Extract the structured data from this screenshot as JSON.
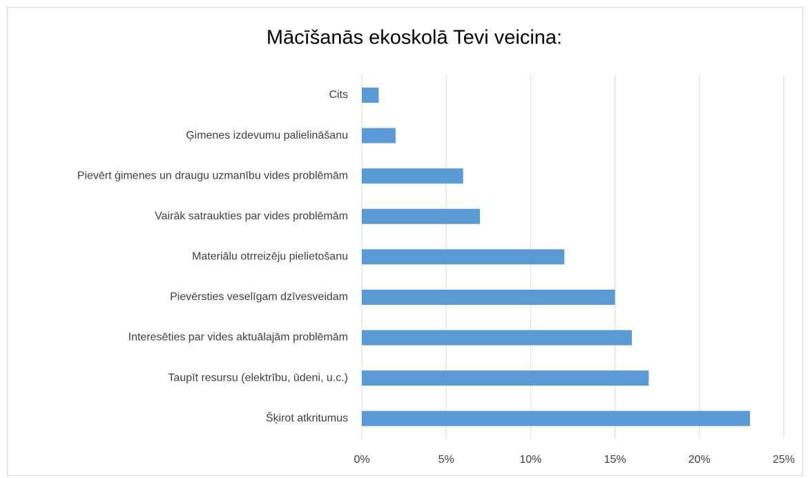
{
  "chart_data": {
    "type": "barh",
    "title": "Mācīšanās ekoskolā Tevi veicina:",
    "categories": [
      "Cits",
      "Ģimenes izdevumu palielināšanu",
      "Pievērt ģimenes un draugu uzmanību vides problēmām",
      "Vairāk satraukties par vides problēmām",
      "Materiālu otrreizēju pielietošanu",
      "Pievērsties veselīgam dzīvesveidam",
      "Interesēties par vides aktuālajām problēmām",
      "Taupīt resursu (elektrību, ūdeni, u.c.)",
      "Šķirot atkritumus"
    ],
    "values": [
      1,
      2,
      6,
      7,
      12,
      15,
      16,
      17,
      23
    ],
    "color": "#5b9bd5",
    "xlim": [
      0,
      25
    ],
    "xticks": [
      {
        "value": 0,
        "label": "0%"
      },
      {
        "value": 5,
        "label": "5%"
      },
      {
        "value": 10,
        "label": "10%"
      },
      {
        "value": 15,
        "label": "15%"
      },
      {
        "value": 20,
        "label": "20%"
      },
      {
        "value": 25,
        "label": "25%"
      }
    ],
    "grid": true
  }
}
